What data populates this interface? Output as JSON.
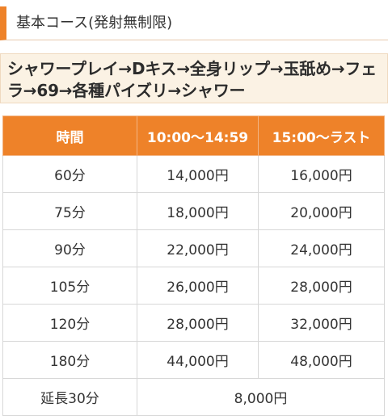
{
  "section": {
    "title": "基本コース(発射無制限)"
  },
  "course": {
    "description": "シャワープレイ→Dキス→全身リップ→玉舐め→フェラ→69→各種パイズリ→シャワー"
  },
  "table": {
    "headers": [
      "時間",
      "10:00〜14:59",
      "15:00〜ラスト"
    ],
    "rows": [
      {
        "time": "60分",
        "day": "14,000円",
        "late": "16,000円"
      },
      {
        "time": "75分",
        "day": "18,000円",
        "late": "20,000円"
      },
      {
        "time": "90分",
        "day": "22,000円",
        "late": "24,000円"
      },
      {
        "time": "105分",
        "day": "26,000円",
        "late": "28,000円"
      },
      {
        "time": "120分",
        "day": "28,000円",
        "late": "32,000円"
      },
      {
        "time": "180分",
        "day": "44,000円",
        "late": "48,000円"
      }
    ],
    "extension": {
      "label": "延長30分",
      "price": "8,000円"
    }
  },
  "colors": {
    "accent": "#ee8229",
    "course_background": "#fbf2e4",
    "border": "#d7d7d7"
  }
}
